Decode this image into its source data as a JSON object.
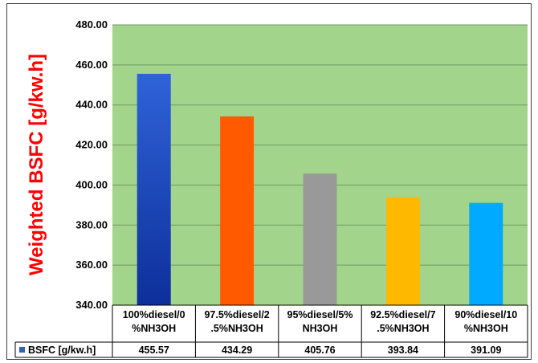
{
  "chart_data": {
    "type": "bar",
    "title": "",
    "xlabel": "",
    "ylabel": "Weighted  BSFC [g/kw.h]",
    "categories": [
      [
        "100%diesel/0",
        "%NH3OH"
      ],
      [
        "97.5%diesel/2",
        ".5%NH3OH"
      ],
      [
        "95%diesel/5%",
        "NH3OH"
      ],
      [
        "92.5%diesel/7",
        ".5%NH3OH"
      ],
      [
        "90%diesel/10",
        "%NH3OH"
      ]
    ],
    "series": [
      {
        "name": "BSFC [g/kw.h]",
        "values": [
          455.57,
          434.29,
          405.76,
          393.84,
          391.09
        ],
        "value_labels": [
          "455.57",
          "434.29",
          "405.76",
          "393.84",
          "391.09"
        ]
      }
    ],
    "ylim": [
      340,
      480
    ],
    "yticks": [
      "340.00",
      "360.00",
      "380.00",
      "400.00",
      "420.00",
      "440.00",
      "460.00",
      "480.00"
    ],
    "grid": true,
    "data_table": true,
    "colors": {
      "plot_background": "#a3d48c",
      "gridline": "#6f9a5f",
      "bars": [
        "#1f4fbf",
        "#ff5a00",
        "#999999",
        "#ffb800",
        "#00aaff"
      ],
      "legend_key": "#2f5fbf",
      "ylabel": "#ff0000"
    }
  }
}
